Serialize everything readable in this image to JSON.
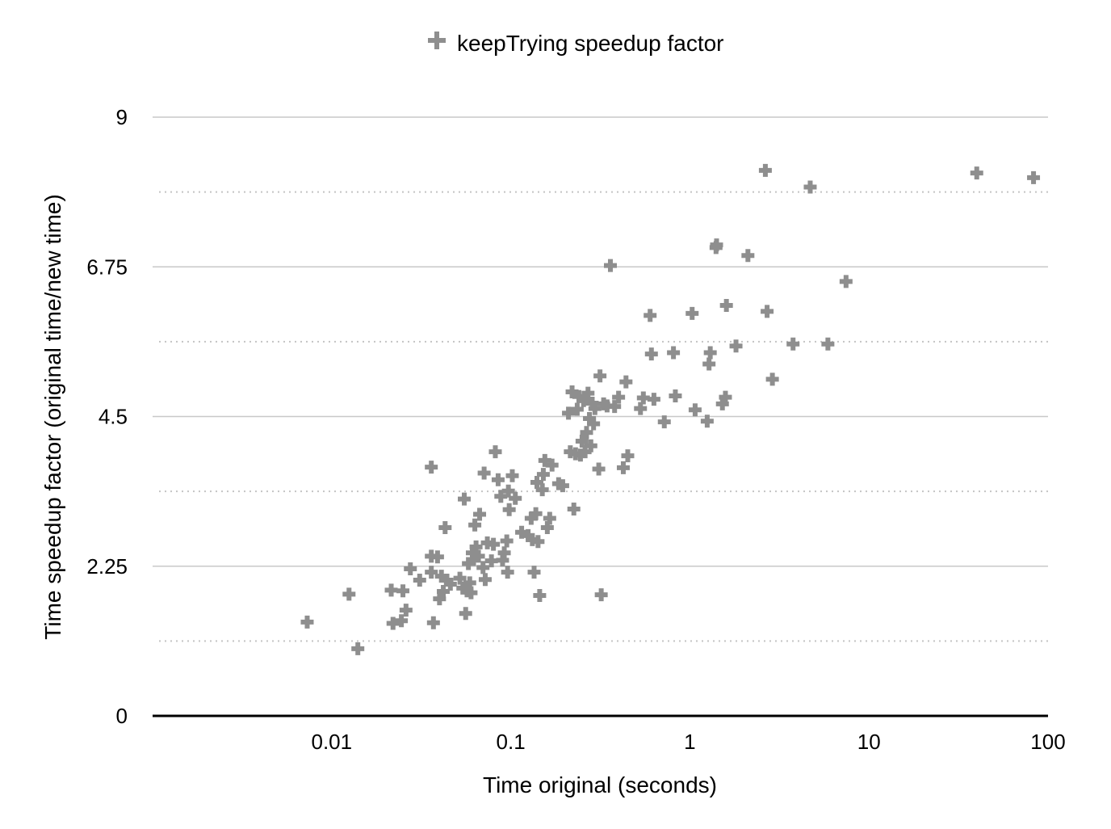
{
  "chart_data": {
    "type": "scatter",
    "title": "",
    "xlabel": "Time original (seconds)",
    "ylabel": "Time speedup factor (original time/new time)",
    "xscale": "log",
    "xlim": [
      0.001,
      100
    ],
    "ylim": [
      0,
      9
    ],
    "xticks": [
      0.01,
      0.1,
      1,
      10,
      100
    ],
    "xtick_labels": [
      "0.01",
      "0.1",
      "1",
      "10",
      "100"
    ],
    "yticks": [
      0,
      2.25,
      4.5,
      6.75,
      9
    ],
    "ytick_labels": [
      "0",
      "2.25",
      "4.5",
      "6.75",
      "9"
    ],
    "y_minor_gridlines": [
      1.125,
      3.375,
      5.625,
      7.875
    ],
    "grid": true,
    "legend_position": "top-center",
    "marker_color": "#8e8e8e",
    "series": [
      {
        "name": "keepTrying speedup factor",
        "marker": "plus",
        "points": [
          [
            0.0073,
            1.41
          ],
          [
            0.0125,
            1.83
          ],
          [
            0.014,
            1.01
          ],
          [
            0.0215,
            1.89
          ],
          [
            0.022,
            1.39
          ],
          [
            0.0245,
            1.43
          ],
          [
            0.025,
            1.88
          ],
          [
            0.026,
            1.59
          ],
          [
            0.0275,
            2.21
          ],
          [
            0.031,
            2.04
          ],
          [
            0.036,
            3.74
          ],
          [
            0.036,
            2.4
          ],
          [
            0.036,
            2.16
          ],
          [
            0.037,
            1.4
          ],
          [
            0.039,
            2.39
          ],
          [
            0.04,
            1.76
          ],
          [
            0.041,
            2.1
          ],
          [
            0.042,
            1.87
          ],
          [
            0.043,
            2.83
          ],
          [
            0.044,
            2.04
          ],
          [
            0.046,
            1.98
          ],
          [
            0.052,
            2.07
          ],
          [
            0.054,
            1.92
          ],
          [
            0.055,
            3.26
          ],
          [
            0.056,
            1.54
          ],
          [
            0.057,
            1.88
          ],
          [
            0.058,
            2.29
          ],
          [
            0.059,
            2.0
          ],
          [
            0.06,
            1.85
          ],
          [
            0.061,
            2.45
          ],
          [
            0.062,
            2.35
          ],
          [
            0.063,
            2.87
          ],
          [
            0.064,
            2.54
          ],
          [
            0.066,
            2.4
          ],
          [
            0.067,
            3.03
          ],
          [
            0.07,
            2.23
          ],
          [
            0.071,
            3.65
          ],
          [
            0.072,
            2.05
          ],
          [
            0.074,
            2.6
          ],
          [
            0.078,
            2.33
          ],
          [
            0.08,
            2.58
          ],
          [
            0.082,
            3.97
          ],
          [
            0.085,
            3.55
          ],
          [
            0.088,
            3.3
          ],
          [
            0.09,
            2.34
          ],
          [
            0.092,
            2.45
          ],
          [
            0.095,
            2.63
          ],
          [
            0.096,
            2.16
          ],
          [
            0.097,
            3.38
          ],
          [
            0.098,
            3.1
          ],
          [
            0.102,
            3.61
          ],
          [
            0.106,
            3.27
          ],
          [
            0.115,
            2.76
          ],
          [
            0.125,
            2.71
          ],
          [
            0.13,
            2.97
          ],
          [
            0.132,
            2.65
          ],
          [
            0.135,
            2.16
          ],
          [
            0.138,
            3.04
          ],
          [
            0.14,
            3.51
          ],
          [
            0.142,
            2.62
          ],
          [
            0.145,
            1.81
          ],
          [
            0.15,
            3.4
          ],
          [
            0.152,
            3.63
          ],
          [
            0.155,
            3.84
          ],
          [
            0.16,
            2.83
          ],
          [
            0.165,
            2.97
          ],
          [
            0.17,
            3.77
          ],
          [
            0.185,
            3.49
          ],
          [
            0.195,
            3.46
          ],
          [
            0.21,
            4.55
          ],
          [
            0.215,
            3.97
          ],
          [
            0.22,
            4.87
          ],
          [
            0.225,
            3.11
          ],
          [
            0.23,
            3.94
          ],
          [
            0.235,
            4.61
          ],
          [
            0.24,
            4.8
          ],
          [
            0.245,
            3.92
          ],
          [
            0.25,
            4.13
          ],
          [
            0.255,
            4.74
          ],
          [
            0.26,
            3.97
          ],
          [
            0.265,
            4.26
          ],
          [
            0.27,
            4.85
          ],
          [
            0.275,
            4.47
          ],
          [
            0.28,
            4.06
          ],
          [
            0.285,
            4.7
          ],
          [
            0.29,
            4.39
          ],
          [
            0.295,
            4.62
          ],
          [
            0.31,
            3.71
          ],
          [
            0.315,
            5.11
          ],
          [
            0.32,
            1.82
          ],
          [
            0.33,
            4.69
          ],
          [
            0.345,
            4.66
          ],
          [
            0.36,
            6.77
          ],
          [
            0.38,
            4.65
          ],
          [
            0.4,
            4.79
          ],
          [
            0.425,
            3.73
          ],
          [
            0.44,
            5.02
          ],
          [
            0.45,
            3.91
          ],
          [
            0.53,
            4.62
          ],
          [
            0.55,
            4.78
          ],
          [
            0.6,
            6.02
          ],
          [
            0.61,
            5.44
          ],
          [
            0.63,
            4.76
          ],
          [
            0.72,
            4.42
          ],
          [
            0.81,
            5.46
          ],
          [
            0.83,
            4.81
          ],
          [
            1.03,
            6.05
          ],
          [
            1.07,
            4.6
          ],
          [
            1.25,
            4.43
          ],
          [
            1.28,
            5.29
          ],
          [
            1.3,
            5.46
          ],
          [
            1.4,
            7.04
          ],
          [
            1.41,
            7.08
          ],
          [
            1.52,
            4.69
          ],
          [
            1.58,
            4.79
          ],
          [
            1.6,
            6.17
          ],
          [
            1.81,
            5.56
          ],
          [
            2.11,
            6.92
          ],
          [
            2.64,
            8.2
          ],
          [
            2.7,
            6.08
          ],
          [
            2.89,
            5.06
          ],
          [
            3.77,
            5.59
          ],
          [
            4.7,
            7.95
          ],
          [
            5.9,
            5.59
          ],
          [
            7.45,
            6.53
          ],
          [
            40.0,
            8.16
          ],
          [
            83.0,
            8.09
          ]
        ]
      }
    ]
  }
}
